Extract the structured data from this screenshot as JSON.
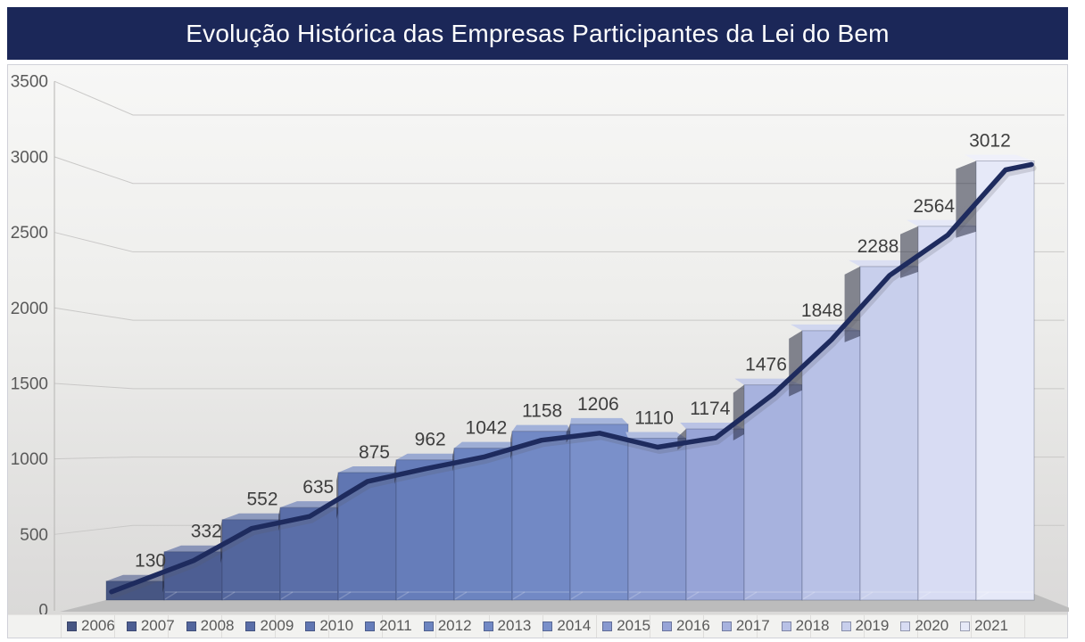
{
  "title": "Evolução Histórica das Empresas Participantes da Lei do Bem",
  "chart_data": {
    "type": "bar",
    "subtype": "3d-column-with-line-overlay",
    "title": "Evolução Histórica das Empresas Participantes da Lei do Bem",
    "categories": [
      "2006",
      "2007",
      "2008",
      "2009",
      "2010",
      "2011",
      "2012",
      "2013",
      "2014",
      "2015",
      "2016",
      "2017",
      "2018",
      "2019",
      "2020",
      "2021"
    ],
    "values": [
      130,
      332,
      552,
      635,
      875,
      962,
      1042,
      1158,
      1206,
      1110,
      1174,
      1476,
      1848,
      2288,
      2564,
      3012
    ],
    "line_overlay": "trend line through the same yearly values",
    "xlabel": "",
    "ylabel": "",
    "ylim": [
      0,
      3500
    ],
    "yticks": [
      0,
      500,
      1000,
      1500,
      2000,
      2500,
      3000,
      3500
    ],
    "grid": true,
    "legend_position": "bottom",
    "colors": {
      "title_bg": "#1b2758",
      "title_text": "#ffffff",
      "bar_ramp": [
        "#475683",
        "#4d5e93",
        "#53669d",
        "#5a6ea8",
        "#6076b2",
        "#667dba",
        "#6c84c0",
        "#7289c5",
        "#7a90ca",
        "#8899cf",
        "#97a4d7",
        "#a7b2de",
        "#b8c1e6",
        "#c8cfec",
        "#d8dcf3",
        "#e6e9f8"
      ],
      "line": "#1e2b5e",
      "data_label": "#3e3e3e",
      "axis_text": "#595959",
      "gridline": "#c9c8c7",
      "floor": "#bababa"
    }
  }
}
